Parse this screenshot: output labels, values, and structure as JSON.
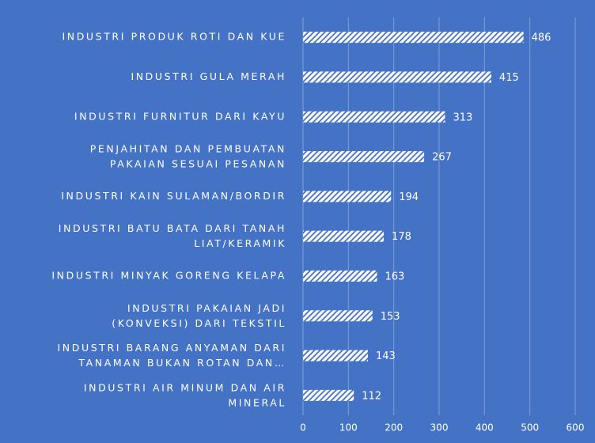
{
  "chart_data": {
    "type": "bar",
    "orientation": "horizontal",
    "categories": [
      "INDUSTRI PRODUK ROTI DAN KUE",
      "INDUSTRI GULA MERAH",
      "INDUSTRI FURNITUR DARI KAYU",
      "PENJAHITAN DAN PEMBUATAN\nPAKAIAN SESUAI PESANAN",
      "INDUSTRI KAIN SULAMAN/BORDIR",
      "INDUSTRI BATU BATA DARI TANAH\nLIAT/KERAMIK",
      "INDUSTRI MINYAK GORENG KELAPA",
      "INDUSTRI PAKAIAN JADI\n(KONVEKSI) DARI TEKSTIL",
      "INDUSTRI BARANG ANYAMAN DARI\nTANAMAN BUKAN ROTAN DAN…",
      "INDUSTRI AIR MINUM DAN AIR\nMINERAL"
    ],
    "values": [
      486,
      415,
      313,
      267,
      194,
      178,
      163,
      153,
      143,
      112
    ],
    "color": "#ffffff",
    "background": "#4472c4",
    "xlim": [
      0,
      600
    ],
    "xticks": [
      0,
      100,
      200,
      300,
      400,
      500,
      600
    ],
    "grid": true
  }
}
